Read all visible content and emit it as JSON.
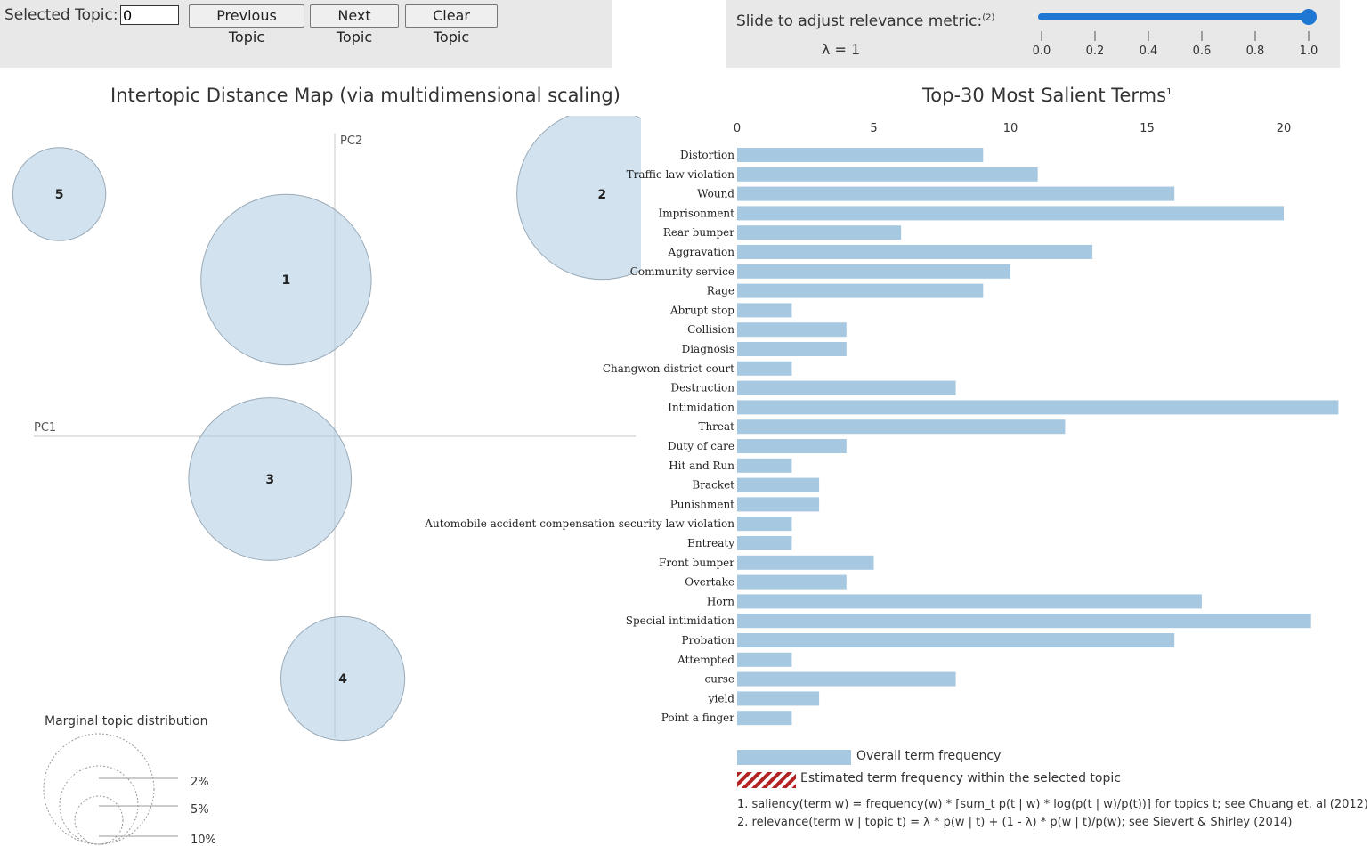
{
  "controls": {
    "selected_topic_label": "Selected Topic:",
    "selected_topic_value": "0",
    "previous_label": "Previous Topic",
    "next_label": "Next Topic",
    "clear_label": "Clear Topic"
  },
  "slider": {
    "label": "Slide to adjust relevance metric:",
    "label_sup": "(2)",
    "lambda_text": "λ = 1",
    "value": 1.0,
    "ticks": [
      "0.0",
      "0.2",
      "0.4",
      "0.6",
      "0.8",
      "1.0"
    ],
    "color": "#1f77d4"
  },
  "left_title": "Intertopic Distance Map (via multidimensional scaling)",
  "right_title": "Top-30 Most Salient Terms",
  "right_title_sup": "1",
  "marginal": {
    "title": "Marginal topic distribution",
    "labels": [
      "2%",
      "5%",
      "10%"
    ]
  },
  "legend": {
    "overall": "Overall term frequency",
    "estimated": "Estimated term frequency within the selected topic",
    "overall_color": "#a6c8e0",
    "estimated_color": "#b22222"
  },
  "notes": {
    "saliency": "1. saliency(term w) = frequency(w) * [sum_t p(t | w) * log(p(t | w)/p(t))] for topics t; see Chuang et. al (2012)",
    "relevance": "2. relevance(term w | topic t) = λ * p(w | t) + (1 - λ) * p(w | t)/p(w); see Sievert & Shirley (2014)"
  },
  "chart_data": [
    {
      "type": "scatter",
      "title": "Intertopic Distance Map (via multidimensional scaling)",
      "xlabel": "PC1",
      "ylabel": "PC2",
      "bubble_color": "#a6c8e0",
      "topics": [
        {
          "label": "1",
          "x": -0.06,
          "y": 0.11,
          "size": 0.22
        },
        {
          "label": "2",
          "x": 0.33,
          "y": 0.17,
          "size": 0.22
        },
        {
          "label": "3",
          "x": -0.08,
          "y": -0.03,
          "size": 0.21
        },
        {
          "label": "4",
          "x": 0.01,
          "y": -0.17,
          "size": 0.16
        },
        {
          "label": "5",
          "x": -0.34,
          "y": 0.17,
          "size": 0.12
        }
      ]
    },
    {
      "type": "bar",
      "orientation": "horizontal",
      "title": "Top-30 Most Salient Terms",
      "xlim": [
        0,
        22
      ],
      "xticks": [
        0,
        5,
        10,
        15,
        20
      ],
      "color": "#a6c8e0",
      "categories": [
        "Distortion",
        "Traffic law violation",
        "Wound",
        "Imprisonment",
        "Rear bumper",
        "Aggravation",
        "Community service",
        "Rage",
        "Abrupt stop",
        "Collision",
        "Diagnosis",
        "Changwon district court",
        "Destruction",
        "Intimidation",
        "Threat",
        "Duty of care",
        "Hit and Run",
        "Bracket",
        "Punishment",
        "Automobile accident compensation security law violation",
        "Entreaty",
        "Front bumper",
        "Overtake",
        "Horn",
        "Special intimidation",
        "Probation",
        "Attempted",
        "curse",
        "yield",
        "Point a finger"
      ],
      "values": [
        9,
        11,
        16,
        20,
        6,
        13,
        10,
        9,
        2,
        4,
        4,
        2,
        8,
        22,
        12,
        4,
        2,
        3,
        3,
        2,
        2,
        5,
        4,
        17,
        21,
        16,
        2,
        8,
        3,
        2
      ]
    }
  ]
}
